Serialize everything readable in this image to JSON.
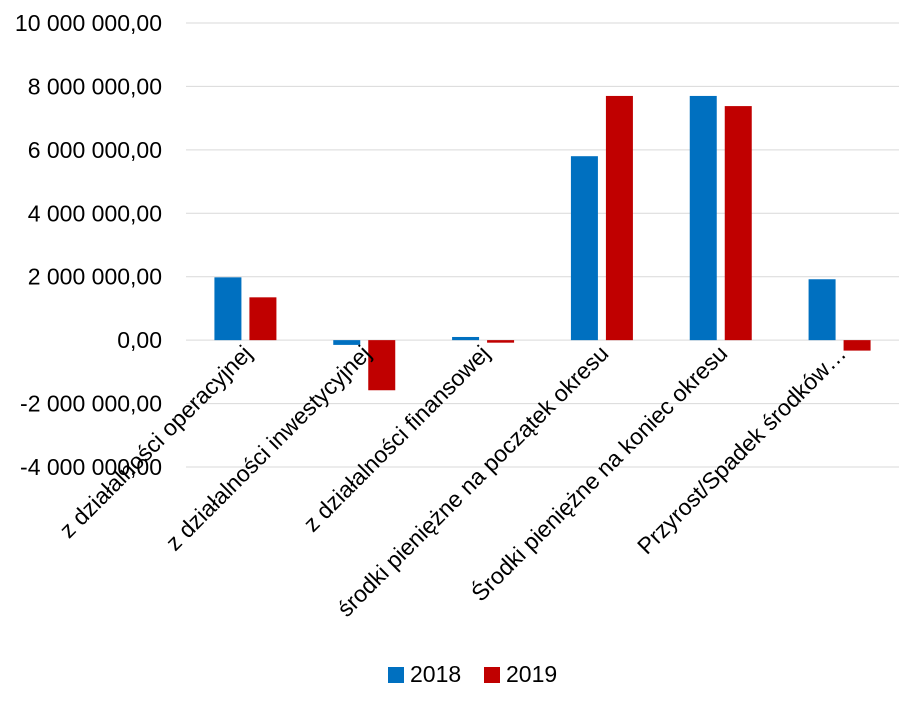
{
  "chart_data": {
    "type": "bar",
    "title": "",
    "xlabel": "",
    "ylabel": "",
    "ylim": [
      -4000000,
      10000000
    ],
    "yticks": [
      {
        "value": -4000000,
        "label": "-4 000 000,00"
      },
      {
        "value": -2000000,
        "label": "-2 000 000,00"
      },
      {
        "value": 0,
        "label": "0,00"
      },
      {
        "value": 2000000,
        "label": "2 000 000,00"
      },
      {
        "value": 4000000,
        "label": "4 000 000,00"
      },
      {
        "value": 6000000,
        "label": "6 000 000,00"
      },
      {
        "value": 8000000,
        "label": "8 000 000,00"
      },
      {
        "value": 10000000,
        "label": "10 000 000,00"
      }
    ],
    "grid": true,
    "legend_position": "bottom",
    "categories": [
      "z działalności operacyjnej",
      "z działalności inwestycyjnej",
      "z działalności finansowej",
      "środki pieniężne na początek okresu",
      "Środki pieniężne na koniec okresu",
      "Przyrost/Spadek środków…"
    ],
    "series": [
      {
        "name": "2018",
        "color": "#0070C0",
        "values": [
          1980000,
          -150000,
          100000,
          5800000,
          7700000,
          1920000
        ]
      },
      {
        "name": "2019",
        "color": "#C00000",
        "values": [
          1350000,
          -1580000,
          -80000,
          7700000,
          7380000,
          -330000
        ]
      }
    ]
  }
}
